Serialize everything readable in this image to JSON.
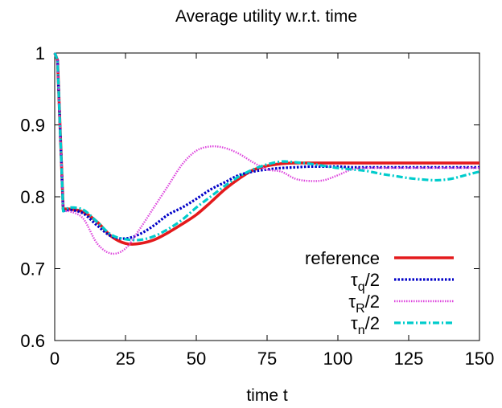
{
  "chart_data": {
    "type": "line",
    "title": "Average utility w.r.t. time",
    "xlabel": "time t",
    "ylabel": "",
    "xlim": [
      0,
      150
    ],
    "ylim": [
      0.6,
      1.0
    ],
    "x_ticks": [
      0,
      25,
      50,
      75,
      100,
      125,
      150
    ],
    "y_ticks": [
      0.6,
      0.7,
      0.8,
      0.9,
      1.0
    ],
    "x_tick_labels": [
      "0",
      "25",
      "50",
      "75",
      "100",
      "125",
      "150"
    ],
    "y_tick_labels": [
      "0.6",
      "0.7",
      "0.8",
      "0.9",
      "1"
    ],
    "grid": false,
    "legend_position": "bottom-right",
    "series": [
      {
        "name": "reference",
        "legend_main": "reference",
        "legend_sub": "",
        "legend_tail": "",
        "color": "#e41a1c",
        "style": "solid",
        "x": [
          0,
          1,
          3,
          5,
          10,
          15,
          20,
          25,
          30,
          35,
          40,
          45,
          50,
          55,
          60,
          65,
          70,
          75,
          80,
          85,
          90,
          95,
          100,
          105,
          110,
          115,
          120,
          125,
          130,
          135,
          140,
          145,
          150
        ],
        "y": [
          1.0,
          0.99,
          0.783,
          0.783,
          0.779,
          0.765,
          0.745,
          0.735,
          0.735,
          0.74,
          0.75,
          0.762,
          0.775,
          0.792,
          0.81,
          0.825,
          0.837,
          0.843,
          0.846,
          0.847,
          0.847,
          0.847,
          0.847,
          0.847,
          0.847,
          0.847,
          0.847,
          0.847,
          0.847,
          0.847,
          0.847,
          0.847,
          0.847
        ]
      },
      {
        "name": "tau_q/2",
        "legend_main": "τ",
        "legend_sub": "q",
        "legend_tail": "/2",
        "color": "#0000c8",
        "style": "dotted",
        "x": [
          0,
          1,
          3,
          5,
          10,
          15,
          20,
          25,
          30,
          35,
          40,
          45,
          50,
          55,
          60,
          65,
          70,
          75,
          80,
          85,
          90,
          95,
          100,
          105,
          110,
          115,
          120,
          125,
          130,
          135,
          140,
          145,
          150
        ],
        "y": [
          1.0,
          0.99,
          0.78,
          0.782,
          0.777,
          0.76,
          0.745,
          0.742,
          0.748,
          0.76,
          0.775,
          0.785,
          0.797,
          0.81,
          0.82,
          0.83,
          0.835,
          0.838,
          0.84,
          0.841,
          0.842,
          0.842,
          0.842,
          0.841,
          0.841,
          0.841,
          0.841,
          0.841,
          0.841,
          0.841,
          0.841,
          0.841,
          0.841
        ]
      },
      {
        "name": "tau_R/2",
        "legend_main": "τ",
        "legend_sub": "R",
        "legend_tail": "/2",
        "color": "#dd44dd",
        "style": "dotted-fine",
        "x": [
          0,
          1,
          3,
          5,
          10,
          15,
          20,
          25,
          30,
          35,
          40,
          45,
          50,
          55,
          60,
          65,
          70,
          75,
          80,
          85,
          90,
          95,
          100,
          105,
          110,
          115,
          120,
          125,
          130,
          135,
          140,
          145,
          150
        ],
        "y": [
          1.0,
          0.99,
          0.78,
          0.78,
          0.77,
          0.735,
          0.721,
          0.728,
          0.755,
          0.785,
          0.815,
          0.845,
          0.864,
          0.87,
          0.868,
          0.86,
          0.848,
          0.838,
          0.835,
          0.825,
          0.822,
          0.823,
          0.83,
          0.838,
          0.84,
          0.84,
          0.84,
          0.84,
          0.84,
          0.84,
          0.84,
          0.84,
          0.84
        ]
      },
      {
        "name": "tau_n/2",
        "legend_main": "τ",
        "legend_sub": "n",
        "legend_tail": "/2",
        "color": "#00cccc",
        "style": "dashdot",
        "x": [
          0,
          1,
          3,
          5,
          10,
          15,
          20,
          25,
          30,
          35,
          40,
          45,
          50,
          55,
          60,
          65,
          70,
          75,
          80,
          85,
          90,
          95,
          100,
          105,
          110,
          115,
          120,
          125,
          130,
          135,
          140,
          145,
          150
        ],
        "y": [
          1.0,
          0.99,
          0.78,
          0.785,
          0.782,
          0.765,
          0.747,
          0.741,
          0.74,
          0.745,
          0.755,
          0.768,
          0.785,
          0.8,
          0.815,
          0.828,
          0.838,
          0.845,
          0.849,
          0.848,
          0.846,
          0.843,
          0.84,
          0.838,
          0.836,
          0.832,
          0.829,
          0.826,
          0.824,
          0.823,
          0.825,
          0.83,
          0.835
        ]
      }
    ]
  }
}
